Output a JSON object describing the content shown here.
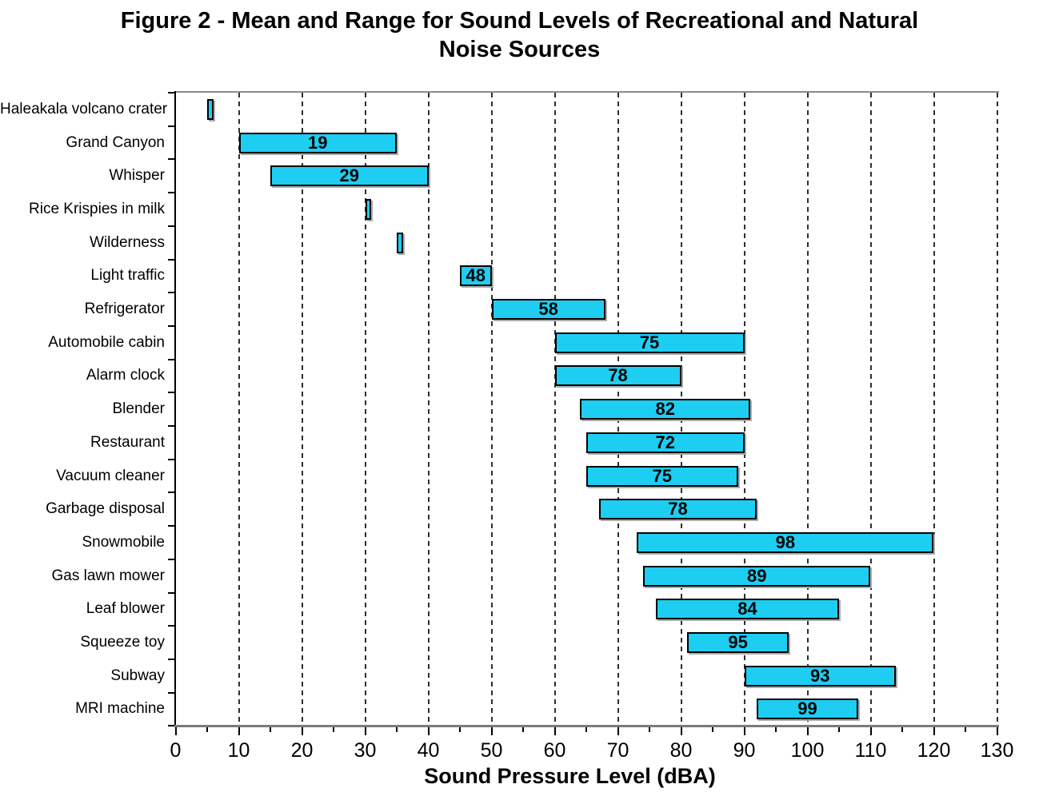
{
  "figure": {
    "title_line1": "Figure 2 - Mean and Range for Sound Levels of Recreational and Natural",
    "title_line2": "Noise Sources"
  },
  "chart_data": {
    "type": "bar",
    "subtype": "horizontal-range-bars",
    "title": "Figure 2 - Mean and Range for Sound Levels of Recreational and Natural Noise Sources",
    "xlabel": "Sound Pressure Level (dBA)",
    "ylabel": "",
    "xlim": [
      0,
      130
    ],
    "x_major_ticks": [
      0,
      10,
      20,
      30,
      40,
      50,
      60,
      70,
      80,
      90,
      100,
      110,
      120,
      130
    ],
    "x_minor_tick_step": 5,
    "grid": "vertical dashed gridlines every 10 dBA",
    "legend": "none",
    "colors": {
      "bar_fill": "#1ECDF2",
      "bar_border": "#000000",
      "gridline": "#2F2F2F",
      "axis_line": "#7A7A7A",
      "text": "#000000"
    },
    "categories": [
      "Haleakala volcano crater",
      "Grand Canyon",
      "Whisper",
      "Rice Krispies in milk",
      "Wilderness",
      "Light traffic",
      "Refrigerator",
      "Automobile cabin",
      "Alarm clock",
      "Blender",
      "Restaurant",
      "Vacuum cleaner",
      "Garbage disposal",
      "Snowmobile",
      "Gas lawn mower",
      "Leaf blower",
      "Squeeze toy",
      "Subway",
      "MRI machine"
    ],
    "series": [
      {
        "label": "Haleakala volcano crater",
        "min": 5,
        "max": 6,
        "mean": null
      },
      {
        "label": "Grand Canyon",
        "min": 10,
        "max": 35,
        "mean": 19
      },
      {
        "label": "Whisper",
        "min": 15,
        "max": 40,
        "mean": 29
      },
      {
        "label": "Rice Krispies in milk",
        "min": 30,
        "max": 31,
        "mean": null
      },
      {
        "label": "Wilderness",
        "min": 35,
        "max": 36,
        "mean": null
      },
      {
        "label": "Light traffic",
        "min": 45,
        "max": 50,
        "mean": 48
      },
      {
        "label": "Refrigerator",
        "min": 50,
        "max": 68,
        "mean": 58
      },
      {
        "label": "Automobile cabin",
        "min": 60,
        "max": 90,
        "mean": 75
      },
      {
        "label": "Alarm clock",
        "min": 60,
        "max": 80,
        "mean": 78
      },
      {
        "label": "Blender",
        "min": 64,
        "max": 91,
        "mean": 82
      },
      {
        "label": "Restaurant",
        "min": 65,
        "max": 90,
        "mean": 72
      },
      {
        "label": "Vacuum cleaner",
        "min": 65,
        "max": 89,
        "mean": 75
      },
      {
        "label": "Garbage disposal",
        "min": 67,
        "max": 92,
        "mean": 78
      },
      {
        "label": "Snowmobile",
        "min": 73,
        "max": 120,
        "mean": 98
      },
      {
        "label": "Gas lawn mower",
        "min": 74,
        "max": 110,
        "mean": 89
      },
      {
        "label": "Leaf blower",
        "min": 76,
        "max": 105,
        "mean": 84
      },
      {
        "label": "Squeeze toy",
        "min": 81,
        "max": 97,
        "mean": 95
      },
      {
        "label": "Subway",
        "min": 90,
        "max": 114,
        "mean": 93
      },
      {
        "label": "MRI machine",
        "min": 92,
        "max": 108,
        "mean": 99
      }
    ]
  }
}
